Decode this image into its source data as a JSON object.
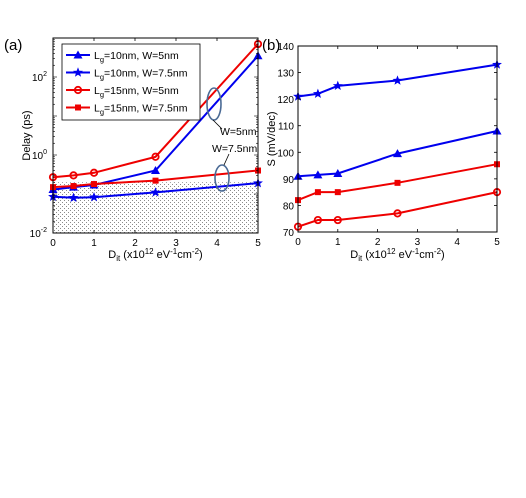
{
  "chart_data": [
    {
      "panel_label": "(a)",
      "type": "line",
      "ylog": true,
      "xlim": [
        0,
        5
      ],
      "ylim": [
        0.01,
        1000
      ],
      "xticks": [
        "0",
        "1",
        "2",
        "3",
        "4",
        "5"
      ],
      "xlabel": {
        "main": "D",
        "sub": "it",
        "rest": " (x10",
        "sup1": "12",
        "rest2": " eV",
        "sup2": "-1",
        "rest3": "cm",
        "sup3": "-2",
        "rest4": ")"
      },
      "ylabel": "Delay (ps)",
      "yticks": [
        {
          "base": "10",
          "exp": "-2"
        },
        {
          "base": "10",
          "exp": "0"
        },
        {
          "base": "10",
          "exp": "2"
        }
      ],
      "shaded_region_below": 0.2,
      "annotations": [
        "W=5nm",
        "W=7.5nm"
      ],
      "x": [
        0,
        0.5,
        1,
        2.5,
        5
      ],
      "series": [
        {
          "name_main": "L",
          "name_sub": "g",
          "name_rest": "=10nm, W=5nm",
          "color": "#0000ee",
          "marker": "triangle",
          "values": [
            0.13,
            0.15,
            0.17,
            0.4,
            350
          ]
        },
        {
          "name_main": "L",
          "name_sub": "g",
          "name_rest": "=10nm, W=7.5nm",
          "color": "#0000ee",
          "marker": "star",
          "values": [
            0.085,
            0.08,
            0.083,
            0.11,
            0.19
          ]
        },
        {
          "name_main": "L",
          "name_sub": "g",
          "name_rest": "=15nm, W=5nm",
          "color": "#ee0000",
          "marker": "circle",
          "values": [
            0.27,
            0.3,
            0.35,
            0.9,
            700
          ]
        },
        {
          "name_main": "L",
          "name_sub": "g",
          "name_rest": "=15nm, W=7.5nm",
          "color": "#ee0000",
          "marker": "square",
          "values": [
            0.15,
            0.16,
            0.18,
            0.22,
            0.4
          ]
        }
      ]
    },
    {
      "panel_label": "(b)",
      "type": "line",
      "xlim": [
        0,
        5
      ],
      "ylim": [
        70,
        140
      ],
      "xticks": [
        "0",
        "1",
        "2",
        "3",
        "4",
        "5"
      ],
      "yticks": [
        "70",
        "80",
        "90",
        "100",
        "110",
        "120",
        "130",
        "140"
      ],
      "xlabel": {
        "main": "D",
        "sub": "it",
        "rest": " (x10",
        "sup1": "12",
        "rest2": " eV",
        "sup2": "-1",
        "rest3": "cm",
        "sup3": "-2",
        "rest4": ")"
      },
      "ylabel": "S (mV/dec)",
      "x": [
        0,
        0.5,
        1,
        2.5,
        5
      ],
      "series": [
        {
          "color": "#0000ee",
          "marker": "star",
          "values": [
            121,
            122,
            125,
            127,
            133
          ]
        },
        {
          "color": "#0000ee",
          "marker": "triangle",
          "values": [
            91,
            91.5,
            92,
            99.5,
            108
          ]
        },
        {
          "color": "#ee0000",
          "marker": "square",
          "values": [
            82,
            85,
            85,
            88.5,
            95.5
          ]
        },
        {
          "color": "#ee0000",
          "marker": "circle",
          "values": [
            72,
            74.5,
            74.5,
            77,
            85
          ]
        }
      ]
    }
  ]
}
